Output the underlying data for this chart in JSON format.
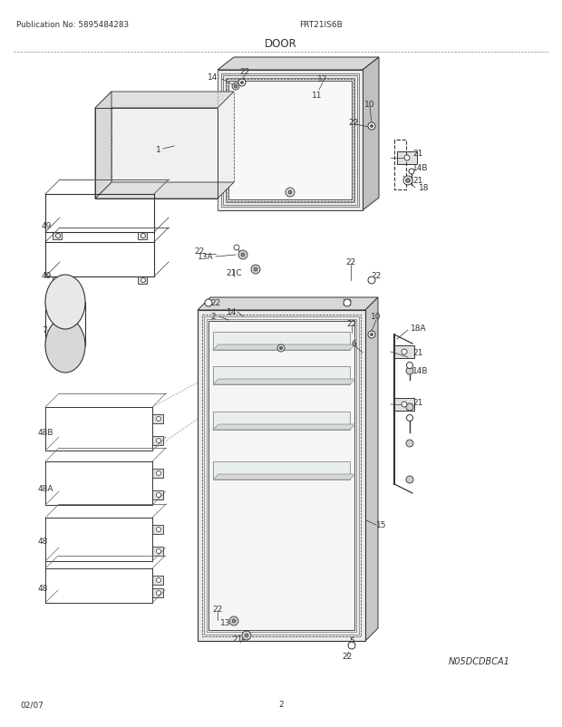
{
  "title": "DOOR",
  "model": "FRT21IS6B",
  "pub_no": "Publication No: 5895484283",
  "date": "02/07",
  "page": "2",
  "diagram_id": "N05DCDBCA1",
  "bg_color": "#ffffff",
  "lc": "#333333",
  "tc": "#333333",
  "fig_width": 6.2,
  "fig_height": 8.03,
  "dpi": 100
}
